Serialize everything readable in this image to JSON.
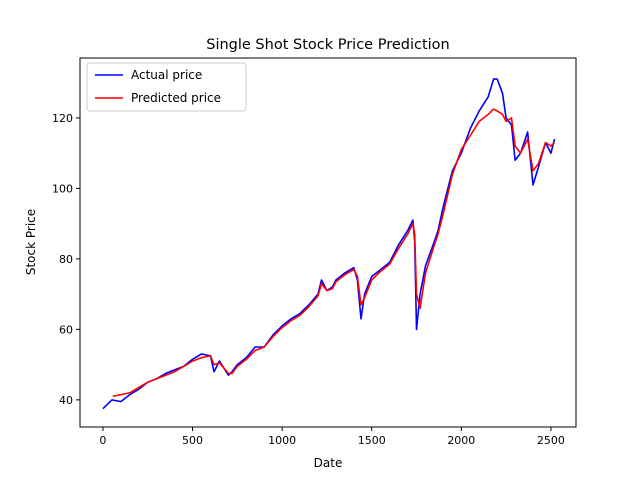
{
  "chart_data": {
    "type": "line",
    "title": "Single Shot Stock Price Prediction",
    "xlabel": "Date",
    "ylabel": "Stock Price",
    "xlim": [
      -128,
      2640
    ],
    "ylim": [
      32.3,
      137
    ],
    "xticks": [
      0,
      500,
      1000,
      1500,
      2000,
      2500
    ],
    "yticks": [
      40,
      60,
      80,
      100,
      120
    ],
    "grid": false,
    "legend": "top-left",
    "series": [
      {
        "name": "Actual price",
        "color": "#0000ff",
        "x": [
          0,
          50,
          100,
          150,
          200,
          250,
          300,
          350,
          400,
          450,
          500,
          550,
          600,
          620,
          650,
          700,
          720,
          750,
          800,
          850,
          900,
          950,
          1000,
          1050,
          1100,
          1150,
          1200,
          1220,
          1250,
          1280,
          1300,
          1350,
          1400,
          1420,
          1440,
          1460,
          1500,
          1550,
          1600,
          1650,
          1700,
          1730,
          1740,
          1750,
          1770,
          1800,
          1850,
          1870,
          1900,
          1950,
          2000,
          2050,
          2100,
          2150,
          2180,
          2200,
          2230,
          2250,
          2280,
          2300,
          2330,
          2370,
          2400,
          2430,
          2470,
          2500,
          2520
        ],
        "y": [
          37.5,
          40,
          39.5,
          41.5,
          43,
          45,
          46,
          47.5,
          48.5,
          49.5,
          51.5,
          53,
          52.5,
          48,
          51,
          47,
          48,
          50,
          52,
          55,
          55,
          58.5,
          61,
          63,
          64.5,
          67,
          70,
          74,
          71,
          72,
          74,
          76,
          77.5,
          74,
          63,
          70,
          75,
          77,
          79,
          84,
          88,
          91,
          85,
          60,
          70,
          78,
          85,
          88,
          95,
          105,
          110,
          117,
          122,
          126,
          131,
          131,
          127,
          120,
          118,
          108,
          110,
          116,
          101,
          106,
          113,
          110,
          114
        ]
      },
      {
        "name": "Predicted price",
        "color": "#ff0000",
        "x": [
          55,
          100,
          150,
          200,
          250,
          300,
          350,
          400,
          450,
          500,
          550,
          600,
          620,
          650,
          700,
          720,
          750,
          800,
          850,
          900,
          950,
          1000,
          1050,
          1100,
          1150,
          1200,
          1220,
          1250,
          1280,
          1300,
          1350,
          1400,
          1420,
          1440,
          1460,
          1500,
          1550,
          1600,
          1650,
          1700,
          1730,
          1740,
          1750,
          1770,
          1800,
          1850,
          1870,
          1900,
          1950,
          2000,
          2050,
          2100,
          2150,
          2180,
          2200,
          2230,
          2250,
          2280,
          2300,
          2330,
          2370,
          2400,
          2430,
          2470,
          2500,
          2520
        ],
        "y": [
          41,
          41.5,
          42,
          43.5,
          45,
          46,
          47,
          48,
          49.5,
          51,
          52,
          52.5,
          50,
          50.5,
          47.5,
          47.5,
          49.5,
          51.5,
          54,
          55,
          58,
          60.5,
          62.5,
          64,
          66.5,
          69.5,
          73,
          71,
          71.5,
          73.5,
          75.5,
          77,
          75,
          67,
          69,
          74,
          76.5,
          78.5,
          83,
          87,
          90,
          87,
          70,
          66,
          76,
          84,
          87,
          93,
          104,
          111,
          115,
          119,
          121,
          122.5,
          122,
          121,
          119,
          120,
          112,
          110,
          114,
          105,
          107,
          113,
          112,
          113
        ]
      }
    ]
  }
}
